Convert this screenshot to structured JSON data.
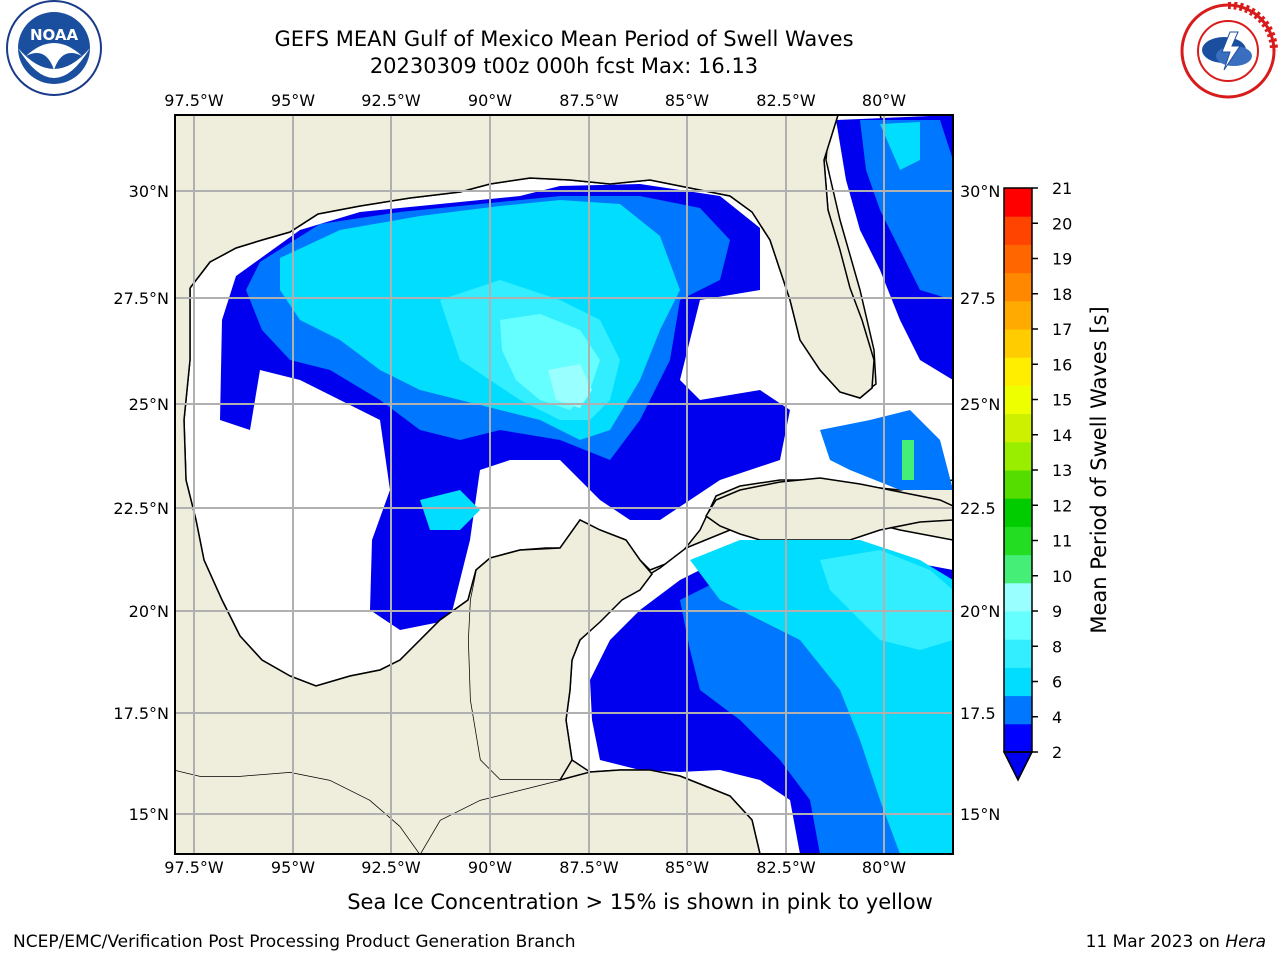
{
  "title_line1": "GEFS MEAN Gulf of Mexico Mean Period of Swell Waves",
  "title_line2": "20230309 t00z 000h fcst   Max: 16.13",
  "logo_left": {
    "name": "NOAA",
    "icon": "noaa-logo"
  },
  "logo_right": {
    "name": "NATIONAL WEATHER SERVICE",
    "icon": "nws-logo"
  },
  "lon_labels": [
    "97.5°W",
    "95°W",
    "92.5°W",
    "90°W",
    "87.5°W",
    "85°W",
    "82.5°W",
    "80°W"
  ],
  "lat_labels_left": [
    "30°N",
    "27.5°N",
    "25°N",
    "22.5°N",
    "20°N",
    "17.5°N",
    "15°N"
  ],
  "lat_labels_right": [
    "30°N",
    "27.5",
    "25°N",
    "22.5",
    "20°N",
    "17.5",
    "15°N"
  ],
  "colorbar": {
    "label": "Mean Period of Swell Waves [s]",
    "ticks": [
      "21",
      "20",
      "19",
      "18",
      "17",
      "16",
      "15",
      "14",
      "13",
      "12",
      "11",
      "10",
      "9",
      "8",
      "6",
      "4",
      "2"
    ],
    "colors": [
      "#0000ff",
      "#0077ff",
      "#00ddff",
      "#33eeff",
      "#66ffff",
      "#99ffff",
      "#44ee77",
      "#22dd22",
      "#00cc00",
      "#55dd00",
      "#99ee00",
      "#ccf000",
      "#eeff00",
      "#ffee00",
      "#ffcc00",
      "#ffaa00",
      "#ff8800",
      "#ff6600",
      "#ff4400",
      "#ff0000"
    ],
    "extend_color": "#0000ee"
  },
  "bottom_note": "Sea Ice Concentration > 15% is shown in pink to yellow",
  "footer_left": "NCEP/EMC/Verification Post Processing Product Generation Branch",
  "footer_right_prefix": "11 Mar 2023 on ",
  "footer_right_host": "Hera"
}
